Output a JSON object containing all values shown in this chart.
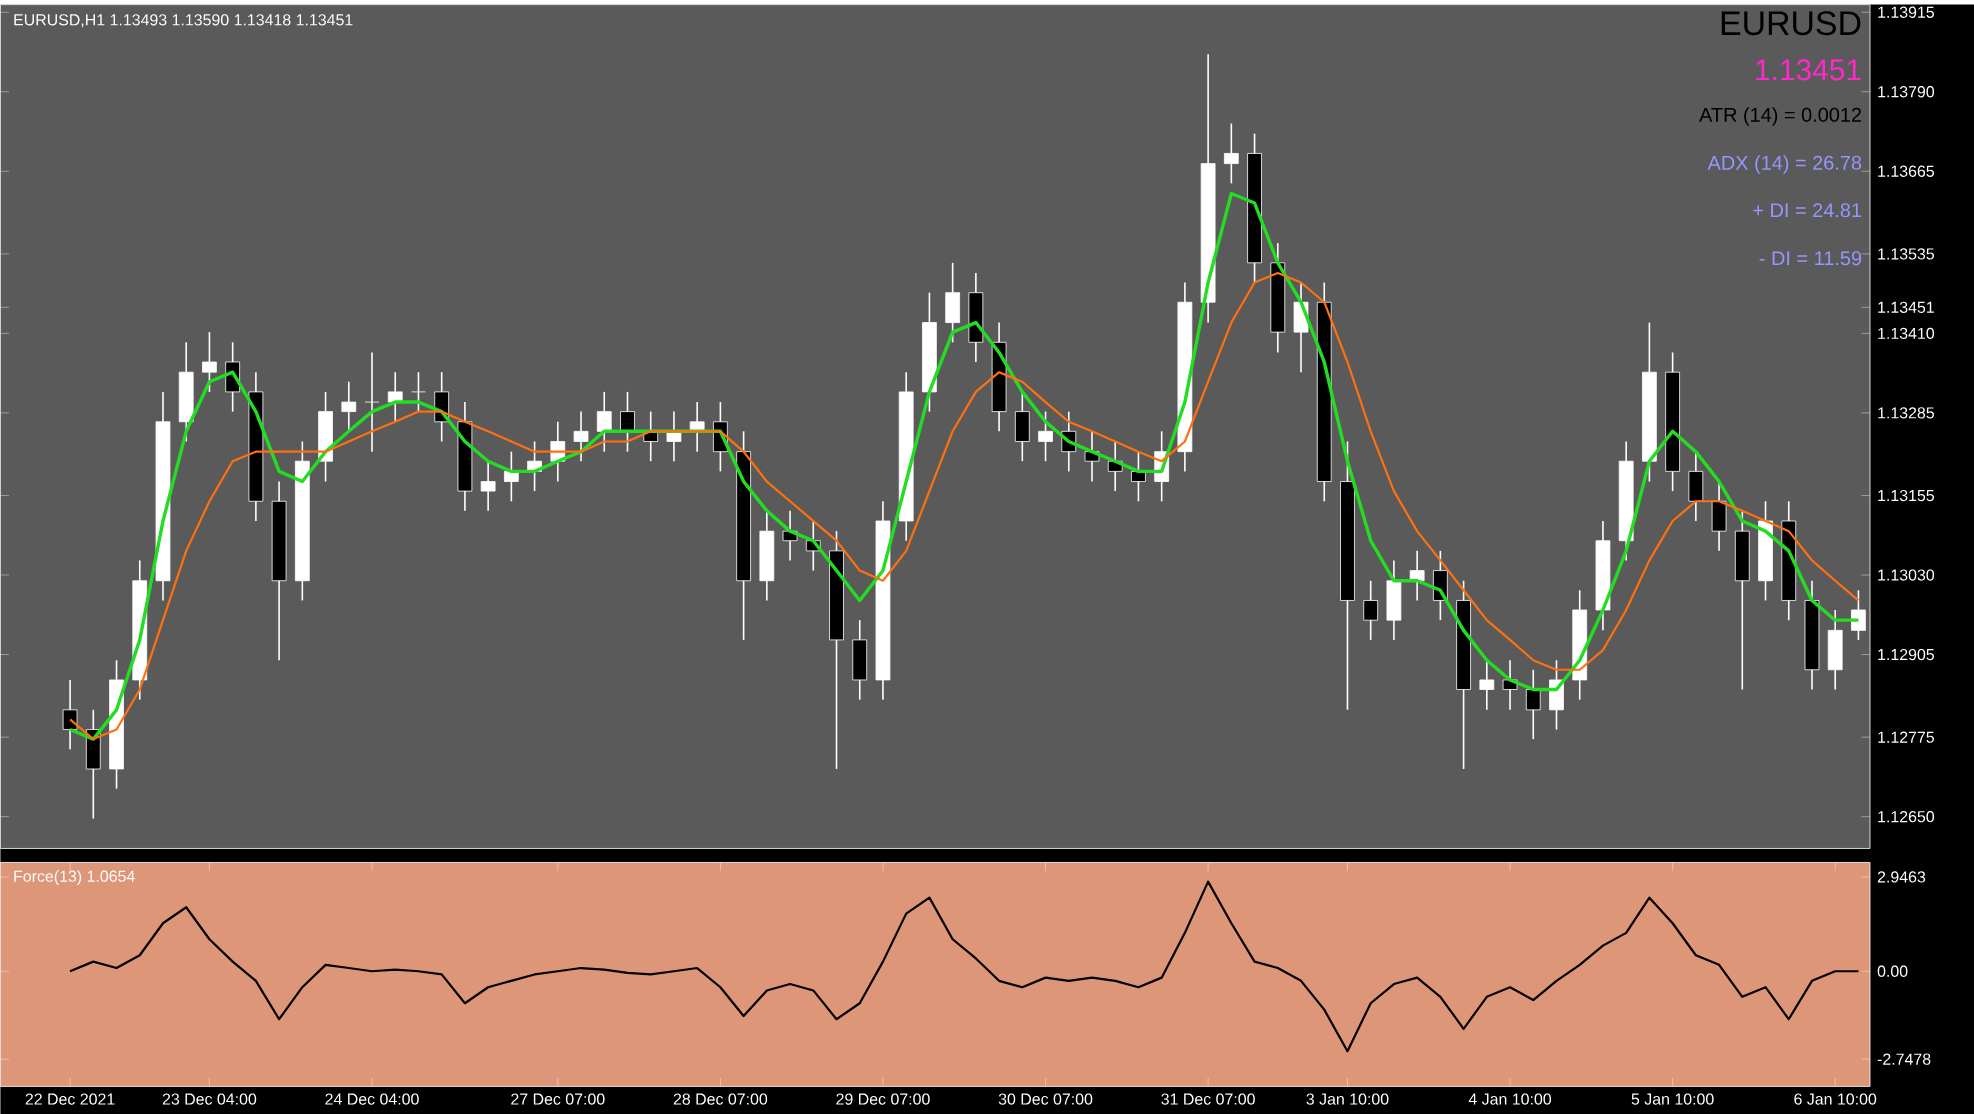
{
  "chart_data": [
    {
      "type": "candlestick",
      "title": "EURUSD,H1 1.13493 1.13590 1.13418 1.13451",
      "annotations": [
        "EURUSD",
        "1.13451",
        "ATR (14) = 0.0012",
        "ADX (14) = 26.78",
        "+ DI = 24.81",
        "- DI = 11.59"
      ],
      "categories": [
        null,
        null,
        null,
        null,
        null,
        null,
        null,
        null,
        null,
        null,
        null,
        null,
        null,
        null,
        null,
        null,
        null,
        null,
        null,
        null,
        null,
        null,
        null,
        null,
        null,
        null,
        null,
        null,
        null,
        null,
        null,
        null,
        null,
        null,
        null,
        null,
        null,
        null,
        null,
        null,
        null,
        null,
        null,
        null,
        null,
        null,
        null,
        null,
        null,
        null,
        null,
        null,
        null,
        null,
        null,
        null,
        null,
        null,
        null,
        null,
        null,
        null,
        null,
        null,
        null,
        null,
        null,
        null,
        null,
        null,
        null,
        null,
        null,
        null,
        null,
        null,
        null,
        null
      ],
      "ohlc": [
        [
          1.12818,
          1.12865,
          1.12756,
          1.12787
        ],
        [
          1.12787,
          1.12818,
          1.12647,
          1.12725
        ],
        [
          1.12725,
          1.12896,
          1.12694,
          1.12865
        ],
        [
          1.12865,
          1.13053,
          1.12834,
          1.13021
        ],
        [
          1.13021,
          1.13318,
          1.1299,
          1.13271
        ],
        [
          1.13271,
          1.13396,
          1.1324,
          1.13349
        ],
        [
          1.13349,
          1.13412,
          1.13318,
          1.13365
        ],
        [
          1.13365,
          1.13396,
          1.13287,
          1.13318
        ],
        [
          1.13318,
          1.13349,
          1.13115,
          1.13146
        ],
        [
          1.13146,
          1.13177,
          1.12896,
          1.13021
        ],
        [
          1.13021,
          1.1324,
          1.1299,
          1.13209
        ],
        [
          1.13209,
          1.13318,
          1.13177,
          1.13287
        ],
        [
          1.13287,
          1.13334,
          1.13256,
          1.13302
        ],
        [
          1.13302,
          1.1338,
          1.13224,
          1.13302
        ],
        [
          1.13302,
          1.13349,
          1.13271,
          1.13318
        ],
        [
          1.13318,
          1.13349,
          1.13287,
          1.13318
        ],
        [
          1.13318,
          1.13349,
          1.1324,
          1.13271
        ],
        [
          1.13271,
          1.13302,
          1.13131,
          1.13162
        ],
        [
          1.13162,
          1.13209,
          1.13131,
          1.13177
        ],
        [
          1.13177,
          1.13224,
          1.13146,
          1.13193
        ],
        [
          1.13193,
          1.1324,
          1.13162,
          1.13209
        ],
        [
          1.13209,
          1.13271,
          1.13177,
          1.1324
        ],
        [
          1.1324,
          1.13287,
          1.13209,
          1.13256
        ],
        [
          1.13256,
          1.13318,
          1.13224,
          1.13287
        ],
        [
          1.13287,
          1.13318,
          1.13224,
          1.13256
        ],
        [
          1.13256,
          1.13287,
          1.13209,
          1.1324
        ],
        [
          1.1324,
          1.13287,
          1.13209,
          1.13256
        ],
        [
          1.13256,
          1.13302,
          1.13224,
          1.13271
        ],
        [
          1.13271,
          1.13302,
          1.13193,
          1.13224
        ],
        [
          1.13224,
          1.13256,
          1.12928,
          1.13021
        ],
        [
          1.13021,
          1.13131,
          1.1299,
          1.13099
        ],
        [
          1.13099,
          1.13131,
          1.13053,
          1.13084
        ],
        [
          1.13084,
          1.13115,
          1.13037,
          1.13068
        ],
        [
          1.13068,
          1.13099,
          1.12725,
          1.12928
        ],
        [
          1.12928,
          1.12959,
          1.12834,
          1.12865
        ],
        [
          1.12865,
          1.13146,
          1.12834,
          1.13115
        ],
        [
          1.13115,
          1.13349,
          1.13084,
          1.13318
        ],
        [
          1.13318,
          1.13474,
          1.13287,
          1.13427
        ],
        [
          1.13427,
          1.13521,
          1.13396,
          1.13474
        ],
        [
          1.13474,
          1.13505,
          1.13365,
          1.13396
        ],
        [
          1.13396,
          1.13427,
          1.13256,
          1.13287
        ],
        [
          1.13287,
          1.13318,
          1.13209,
          1.1324
        ],
        [
          1.1324,
          1.13287,
          1.13209,
          1.13256
        ],
        [
          1.13256,
          1.13287,
          1.13193,
          1.13224
        ],
        [
          1.13224,
          1.13256,
          1.13177,
          1.13209
        ],
        [
          1.13209,
          1.1324,
          1.13162,
          1.13193
        ],
        [
          1.13193,
          1.13224,
          1.13146,
          1.13177
        ],
        [
          1.13177,
          1.13256,
          1.13146,
          1.13224
        ],
        [
          1.13224,
          1.1349,
          1.13193,
          1.13459
        ],
        [
          1.13459,
          1.13849,
          1.13427,
          1.13677
        ],
        [
          1.13677,
          1.1374,
          1.13646,
          1.13693
        ],
        [
          1.13693,
          1.13724,
          1.1349,
          1.13521
        ],
        [
          1.13521,
          1.13552,
          1.1338,
          1.13412
        ],
        [
          1.13412,
          1.1349,
          1.13349,
          1.13459
        ],
        [
          1.13459,
          1.1349,
          1.13146,
          1.13177
        ],
        [
          1.13177,
          1.1324,
          1.12818,
          1.1299
        ],
        [
          1.1299,
          1.13021,
          1.12928,
          1.12959
        ],
        [
          1.12959,
          1.13053,
          1.12928,
          1.13021
        ],
        [
          1.13021,
          1.13068,
          1.1299,
          1.13037
        ],
        [
          1.13037,
          1.13068,
          1.12959,
          1.1299
        ],
        [
          1.1299,
          1.13021,
          1.12725,
          1.1285
        ],
        [
          1.1285,
          1.12896,
          1.12818,
          1.12865
        ],
        [
          1.12865,
          1.12896,
          1.12818,
          1.1285
        ],
        [
          1.1285,
          1.12881,
          1.12772,
          1.12818
        ],
        [
          1.12818,
          1.12896,
          1.12787,
          1.12865
        ],
        [
          1.12865,
          1.13006,
          1.12834,
          1.12975
        ],
        [
          1.12975,
          1.13115,
          1.12943,
          1.13084
        ],
        [
          1.13084,
          1.1324,
          1.13053,
          1.13209
        ],
        [
          1.13209,
          1.13427,
          1.13177,
          1.13349
        ],
        [
          1.13349,
          1.1338,
          1.13162,
          1.13193
        ],
        [
          1.13193,
          1.13224,
          1.13115,
          1.13146
        ],
        [
          1.13146,
          1.13177,
          1.13068,
          1.13099
        ],
        [
          1.13099,
          1.13131,
          1.1285,
          1.13021
        ],
        [
          1.13021,
          1.13146,
          1.1299,
          1.13115
        ],
        [
          1.13115,
          1.13146,
          1.12959,
          1.1299
        ],
        [
          1.1299,
          1.13021,
          1.1285,
          1.12881
        ],
        [
          1.12881,
          1.12975,
          1.1285,
          1.12943
        ],
        [
          1.12943,
          1.13006,
          1.12928,
          1.12975
        ]
      ],
      "series": [
        {
          "type": "line",
          "color": "#22dd22",
          "values": [
            1.12787,
            1.12772,
            1.12818,
            1.12928,
            1.13115,
            1.13256,
            1.13334,
            1.13349,
            1.13287,
            1.13193,
            1.13177,
            1.13224,
            1.13256,
            1.13287,
            1.13302,
            1.13302,
            1.13287,
            1.1324,
            1.13209,
            1.13193,
            1.13193,
            1.13209,
            1.13224,
            1.13256,
            1.13256,
            1.13256,
            1.13256,
            1.13256,
            1.13256,
            1.13177,
            1.13131,
            1.13099,
            1.13084,
            1.13037,
            1.1299,
            1.13037,
            1.13177,
            1.13318,
            1.13412,
            1.13427,
            1.1338,
            1.13318,
            1.13271,
            1.1324,
            1.13224,
            1.13209,
            1.13193,
            1.13193,
            1.13302,
            1.1349,
            1.1363,
            1.13615,
            1.13521,
            1.13459,
            1.13365,
            1.13209,
            1.13084,
            1.13021,
            1.13021,
            1.13006,
            1.12943,
            1.12896,
            1.12865,
            1.1285,
            1.1285,
            1.12896,
            1.12975,
            1.13068,
            1.13209,
            1.13256,
            1.13224,
            1.13177,
            1.13115,
            1.13099,
            1.13068,
            1.1299,
            1.12959,
            1.12959
          ]
        },
        {
          "type": "line",
          "color": "#ff7010",
          "values": [
            1.12803,
            1.12772,
            1.12787,
            1.1285,
            1.12959,
            1.13068,
            1.13146,
            1.13209,
            1.13224,
            1.13224,
            1.13224,
            1.13224,
            1.1324,
            1.13256,
            1.13271,
            1.13287,
            1.13287,
            1.13271,
            1.13256,
            1.1324,
            1.13224,
            1.13224,
            1.13224,
            1.1324,
            1.1324,
            1.13256,
            1.13256,
            1.13256,
            1.13256,
            1.13224,
            1.13177,
            1.13146,
            1.13115,
            1.13084,
            1.13037,
            1.13021,
            1.13068,
            1.13162,
            1.13256,
            1.13318,
            1.13349,
            1.13334,
            1.13302,
            1.13271,
            1.13256,
            1.1324,
            1.13224,
            1.13209,
            1.1324,
            1.13334,
            1.13427,
            1.1349,
            1.13505,
            1.1349,
            1.13459,
            1.13365,
            1.13256,
            1.13162,
            1.13099,
            1.13053,
            1.13006,
            1.12959,
            1.12928,
            1.12896,
            1.12881,
            1.12881,
            1.12912,
            1.12975,
            1.13053,
            1.13115,
            1.13146,
            1.13146,
            1.13131,
            1.13115,
            1.13099,
            1.13053,
            1.13021,
            1.1299
          ]
        }
      ],
      "ylim": [
        1.126,
        1.13927
      ],
      "yticks": [
        1.13915,
        {
          "value": 1.1379,
          "label": "1.13790"
        },
        1.13665,
        1.13535,
        {
          "value": 1.1341,
          "label": "1.13410"
        },
        1.13285,
        1.13155,
        {
          "value": 1.1303,
          "label": "1.13030"
        },
        1.12905,
        1.12775,
        {
          "value": 1.1265,
          "label": "1.12650"
        },
        {
          "value": 1.13451,
          "label": "1.13451"
        }
      ],
      "tick_labels": "y",
      "grid": false
    },
    {
      "type": "line",
      "title": "Force(13) 1.0654",
      "color": "#000000",
      "categories": [
        "22 Dec 2021",
        null,
        null,
        null,
        null,
        null,
        "23 Dec 04:00",
        null,
        null,
        null,
        null,
        null,
        null,
        "24 Dec 04:00",
        null,
        null,
        null,
        null,
        null,
        null,
        null,
        "27 Dec 07:00",
        null,
        null,
        null,
        null,
        null,
        null,
        "28 Dec 07:00",
        null,
        null,
        null,
        null,
        null,
        null,
        "29 Dec 07:00",
        null,
        null,
        null,
        null,
        null,
        null,
        "30 Dec 07:00",
        null,
        null,
        null,
        null,
        null,
        null,
        "31 Dec 07:00",
        null,
        null,
        null,
        null,
        null,
        "3 Jan 10:00",
        null,
        null,
        null,
        null,
        null,
        null,
        "4 Jan 10:00",
        null,
        null,
        null,
        null,
        null,
        null,
        "5 Jan 10:00",
        null,
        null,
        null,
        null,
        null,
        null,
        "6 Jan 10:00",
        null
      ],
      "values": [
        0,
        0.3,
        0.1,
        0.5,
        1.5,
        2.0,
        1.0,
        0.3,
        -0.3,
        -1.5,
        -0.5,
        0.2,
        0.1,
        0,
        0.05,
        0,
        -0.1,
        -1.0,
        -0.5,
        -0.3,
        -0.1,
        0,
        0.1,
        0.05,
        -0.05,
        -0.1,
        0,
        0.1,
        -0.5,
        -1.4,
        -0.6,
        -0.4,
        -0.6,
        -1.5,
        -1.0,
        0.3,
        1.8,
        2.3,
        1.0,
        0.4,
        -0.3,
        -0.5,
        -0.2,
        -0.3,
        -0.2,
        -0.3,
        -0.5,
        -0.2,
        1.2,
        2.8,
        1.5,
        0.3,
        0.1,
        -0.3,
        -1.2,
        -2.5,
        -1.0,
        -0.4,
        -0.2,
        -0.8,
        -1.8,
        -0.8,
        -0.5,
        -0.9,
        -0.3,
        0.2,
        0.8,
        1.2,
        2.3,
        1.5,
        0.5,
        0.2,
        -0.8,
        -0.5,
        -1.5,
        -0.3,
        0,
        0
      ],
      "ylim": [
        -3.6,
        3.4
      ],
      "yticks": [
        2.9463,
        {
          "value": 0,
          "label": "0.00"
        },
        -2.7478
      ],
      "grid": false
    }
  ]
}
